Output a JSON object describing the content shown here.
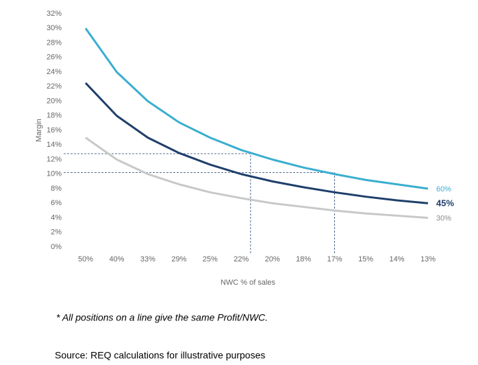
{
  "chart_data": {
    "type": "line",
    "y_label": "Margin",
    "x_label": "NWC % of sales",
    "categories": [
      "50%",
      "40%",
      "33%",
      "29%",
      "25%",
      "22%",
      "20%",
      "18%",
      "17%",
      "15%",
      "14%",
      "13%"
    ],
    "series": [
      {
        "name": "60%",
        "color": "#3aaecf",
        "values": [
          30,
          24,
          20,
          17.1,
          15,
          13.3,
          12,
          10.9,
          10,
          9.2,
          8.6,
          8
        ]
      },
      {
        "name": "45%",
        "color": "#1f3f6b",
        "values": [
          22.5,
          18,
          15,
          12.9,
          11.3,
          10,
          9,
          8.2,
          7.5,
          6.9,
          6.4,
          6
        ]
      },
      {
        "name": "30%",
        "color": "#c8c8c8",
        "values": [
          15,
          12,
          10,
          8.6,
          7.5,
          6.7,
          6,
          5.5,
          5,
          4.6,
          4.3,
          4
        ]
      }
    ],
    "guides": [
      {
        "y": 12.8,
        "x_index": 5.3
      },
      {
        "y": 10.2,
        "x_index": 8
      }
    ],
    "ylim": [
      0,
      32
    ],
    "yticks": [
      {
        "value": 0,
        "label": "0%"
      },
      {
        "value": 2,
        "label": "2%"
      },
      {
        "value": 4,
        "label": "4%"
      },
      {
        "value": 6,
        "label": "6%"
      },
      {
        "value": 8,
        "label": "8%"
      },
      {
        "value": 10,
        "label": "10%"
      },
      {
        "value": 12,
        "label": "12%"
      },
      {
        "value": 14,
        "label": "14%"
      },
      {
        "value": 16,
        "label": "16%"
      },
      {
        "value": 18,
        "label": "18%"
      },
      {
        "value": 20,
        "label": "20%"
      },
      {
        "value": 22,
        "label": "22%"
      },
      {
        "value": 24,
        "label": "24%"
      },
      {
        "value": 26,
        "label": "26%"
      },
      {
        "value": 28,
        "label": "28%"
      },
      {
        "value": 30,
        "label": "30%"
      },
      {
        "value": 32,
        "label": "32%"
      }
    ],
    "grid": false,
    "footnote": "* All positions on a line give the same Profit/NWC.",
    "source": "Source: REQ calculations for illustrative purposes"
  }
}
